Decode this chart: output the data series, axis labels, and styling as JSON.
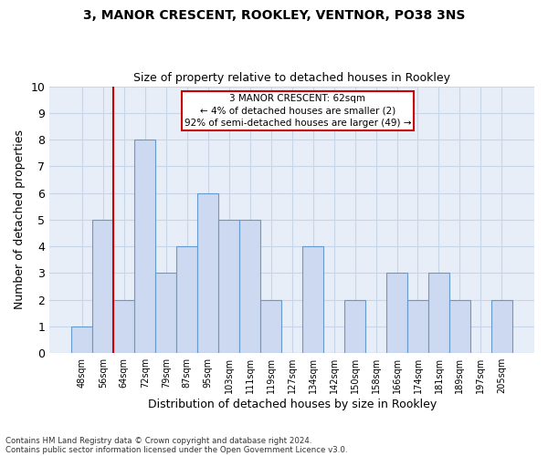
{
  "title1": "3, MANOR CRESCENT, ROOKLEY, VENTNOR, PO38 3NS",
  "title2": "Size of property relative to detached houses in Rookley",
  "xlabel": "Distribution of detached houses by size in Rookley",
  "ylabel": "Number of detached properties",
  "categories": [
    "48sqm",
    "56sqm",
    "64sqm",
    "72sqm",
    "79sqm",
    "87sqm",
    "95sqm",
    "103sqm",
    "111sqm",
    "119sqm",
    "127sqm",
    "134sqm",
    "142sqm",
    "150sqm",
    "158sqm",
    "166sqm",
    "174sqm",
    "181sqm",
    "189sqm",
    "197sqm",
    "205sqm"
  ],
  "values": [
    1,
    5,
    2,
    8,
    3,
    4,
    6,
    5,
    5,
    2,
    0,
    4,
    0,
    2,
    0,
    3,
    2,
    3,
    2,
    0,
    2
  ],
  "bar_color": "#ccd9f0",
  "bar_edge_color": "#6699cc",
  "marker_bar_index": 2,
  "marker_line_color": "#cc0000",
  "annotation_line1": "3 MANOR CRESCENT: 62sqm",
  "annotation_line2": "← 4% of detached houses are smaller (2)",
  "annotation_line3": "92% of semi-detached houses are larger (49) →",
  "annotation_box_edgecolor": "#cc0000",
  "ylim": [
    0,
    10
  ],
  "yticks": [
    0,
    1,
    2,
    3,
    4,
    5,
    6,
    7,
    8,
    9,
    10
  ],
  "footnote1": "Contains HM Land Registry data © Crown copyright and database right 2024.",
  "footnote2": "Contains public sector information licensed under the Open Government Licence v3.0.",
  "grid_color": "#c8d4e8",
  "bg_color": "#e8eef8"
}
